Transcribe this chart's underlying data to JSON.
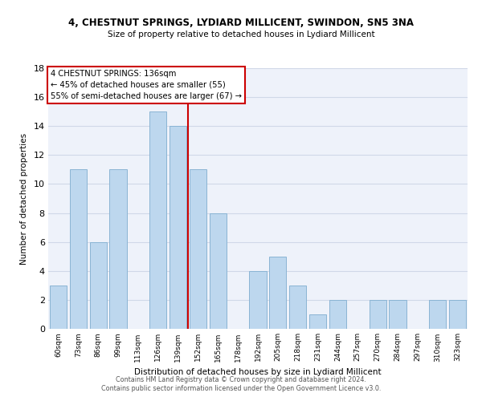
{
  "title1": "4, CHESTNUT SPRINGS, LYDIARD MILLICENT, SWINDON, SN5 3NA",
  "title2": "Size of property relative to detached houses in Lydiard Millicent",
  "xlabel": "Distribution of detached houses by size in Lydiard Millicent",
  "ylabel": "Number of detached properties",
  "bar_labels": [
    "60sqm",
    "73sqm",
    "86sqm",
    "99sqm",
    "113sqm",
    "126sqm",
    "139sqm",
    "152sqm",
    "165sqm",
    "178sqm",
    "192sqm",
    "205sqm",
    "218sqm",
    "231sqm",
    "244sqm",
    "257sqm",
    "270sqm",
    "284sqm",
    "297sqm",
    "310sqm",
    "323sqm"
  ],
  "bar_values": [
    3,
    11,
    6,
    11,
    0,
    15,
    14,
    11,
    8,
    0,
    4,
    5,
    3,
    1,
    2,
    0,
    2,
    2,
    0,
    2,
    2
  ],
  "bar_color": "#bdd7ee",
  "bar_edgecolor": "#8ab4d4",
  "vline_x_index": 6,
  "vline_color": "#cc0000",
  "annotation_lines": [
    "4 CHESTNUT SPRINGS: 136sqm",
    "← 45% of detached houses are smaller (55)",
    "55% of semi-detached houses are larger (67) →"
  ],
  "ylim": [
    0,
    18
  ],
  "yticks": [
    0,
    2,
    4,
    6,
    8,
    10,
    12,
    14,
    16,
    18
  ],
  "grid_color": "#d0d8e8",
  "bg_color": "#eef2fa",
  "footer1": "Contains HM Land Registry data © Crown copyright and database right 2024.",
  "footer2": "Contains public sector information licensed under the Open Government Licence v3.0."
}
